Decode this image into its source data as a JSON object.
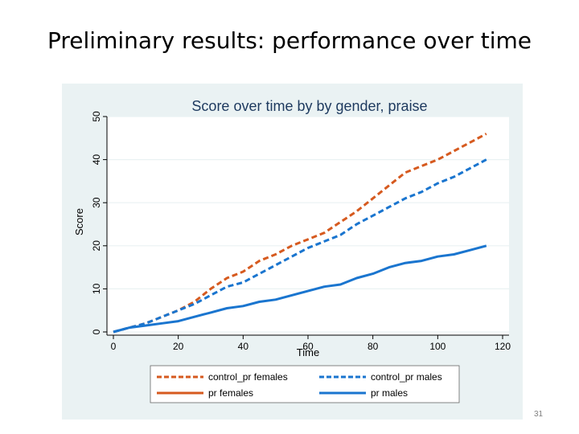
{
  "slide": {
    "title": "Preliminary results: performance over time",
    "page_number": "31"
  },
  "colors": {
    "panel_bg": "#eaf2f3",
    "plot_bg": "#ffffff",
    "grid": "#eaf2f3",
    "orange": "#d65a1f",
    "blue": "#1a75cf",
    "title_text": "#1e3a5f"
  },
  "chart_data": {
    "type": "line",
    "title": "Score over time by by gender, praise",
    "xlabel": "Time",
    "ylabel": "Score",
    "xlim": [
      0,
      120
    ],
    "ylim": [
      0,
      50
    ],
    "xticks": [
      0,
      20,
      40,
      60,
      80,
      100,
      120
    ],
    "yticks": [
      0,
      10,
      20,
      30,
      40,
      50
    ],
    "grid": true,
    "legend_position": "bottom",
    "series": [
      {
        "name": "control_pr females",
        "color": "#d65a1f",
        "style": "dashed",
        "points": [
          [
            0,
            0
          ],
          [
            5,
            1
          ],
          [
            10,
            2
          ],
          [
            15,
            3.5
          ],
          [
            20,
            5
          ],
          [
            25,
            7
          ],
          [
            30,
            10
          ],
          [
            35,
            12.5
          ],
          [
            40,
            14
          ],
          [
            45,
            16.5
          ],
          [
            50,
            18
          ],
          [
            55,
            20
          ],
          [
            60,
            21.5
          ],
          [
            65,
            23
          ],
          [
            70,
            25.5
          ],
          [
            75,
            28
          ],
          [
            80,
            31
          ],
          [
            85,
            34
          ],
          [
            90,
            37
          ],
          [
            95,
            38.5
          ],
          [
            100,
            40
          ],
          [
            105,
            42
          ],
          [
            110,
            44
          ],
          [
            115,
            46
          ]
        ]
      },
      {
        "name": "control_pr males",
        "color": "#1a75cf",
        "style": "dashed",
        "points": [
          [
            0,
            0
          ],
          [
            5,
            1
          ],
          [
            10,
            2
          ],
          [
            15,
            3.5
          ],
          [
            20,
            5
          ],
          [
            25,
            6.5
          ],
          [
            30,
            8.5
          ],
          [
            35,
            10.5
          ],
          [
            40,
            11.5
          ],
          [
            45,
            13.5
          ],
          [
            50,
            15.5
          ],
          [
            55,
            17.5
          ],
          [
            60,
            19.5
          ],
          [
            65,
            21
          ],
          [
            70,
            22.5
          ],
          [
            75,
            25
          ],
          [
            80,
            27
          ],
          [
            85,
            29
          ],
          [
            90,
            31
          ],
          [
            95,
            32.5
          ],
          [
            100,
            34.5
          ],
          [
            105,
            36
          ],
          [
            110,
            38
          ],
          [
            115,
            40
          ]
        ]
      },
      {
        "name": "pr females",
        "color": "#d65a1f",
        "style": "solid",
        "points": []
      },
      {
        "name": "pr males",
        "color": "#1a75cf",
        "style": "solid",
        "points": [
          [
            0,
            0
          ],
          [
            5,
            1
          ],
          [
            10,
            1.5
          ],
          [
            15,
            2
          ],
          [
            20,
            2.5
          ],
          [
            25,
            3.5
          ],
          [
            30,
            4.5
          ],
          [
            35,
            5.5
          ],
          [
            40,
            6
          ],
          [
            45,
            7
          ],
          [
            50,
            7.5
          ],
          [
            55,
            8.5
          ],
          [
            60,
            9.5
          ],
          [
            65,
            10.5
          ],
          [
            70,
            11
          ],
          [
            75,
            12.5
          ],
          [
            80,
            13.5
          ],
          [
            85,
            15
          ],
          [
            90,
            16
          ],
          [
            95,
            16.5
          ],
          [
            100,
            17.5
          ],
          [
            105,
            18
          ],
          [
            110,
            19
          ],
          [
            115,
            20
          ]
        ]
      }
    ]
  }
}
